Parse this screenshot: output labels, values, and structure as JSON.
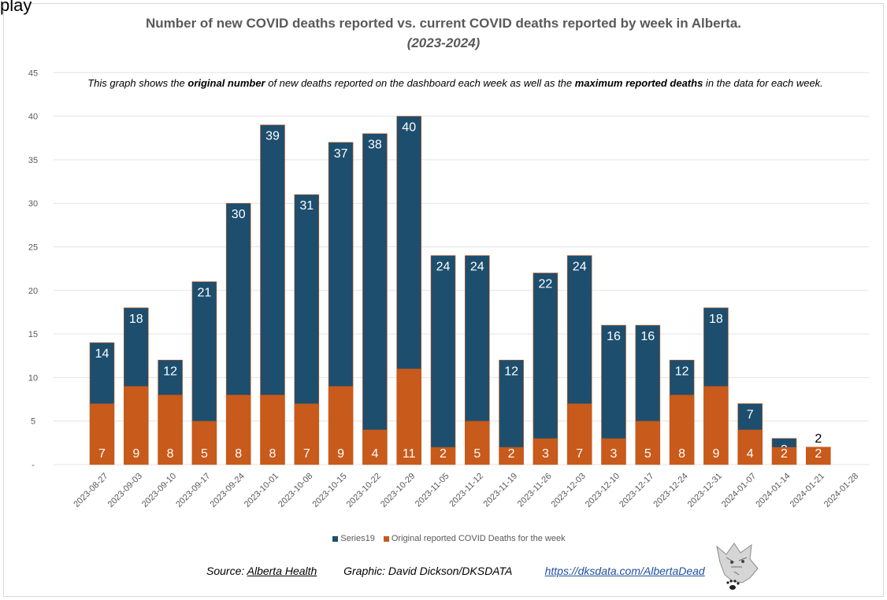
{
  "top_text": "play",
  "title": "Number of new COVID deaths reported vs. current COVID deaths reported by week in Alberta.",
  "subtitle": "(2023-2024)",
  "note": {
    "pre": "This graph shows the ",
    "b1": "original number",
    "mid": " of new deaths reported on the dashboard each week as well as the ",
    "b2": "maximum reported deaths",
    "post": " in the data for each week."
  },
  "legend": {
    "series1": "Series19",
    "series2": "Original reported COVID Deaths for the week"
  },
  "footer": {
    "source_prefix": "Source: ",
    "source": "Alberta Health",
    "graphic": "Graphic: David Dickson/DKSDATA",
    "url": "https://dksdata.com/AlbertaDead"
  },
  "colors": {
    "series1": "#1d4e6e",
    "series2": "#c85a1b",
    "grid": "#e3e3e3",
    "axis_text": "#595959"
  },
  "chart_data": {
    "type": "bar",
    "stacked": false,
    "overlap": true,
    "categories": [
      "2023-08-27",
      "2023-09-03",
      "2023-09-10",
      "2023-09-17",
      "2023-09-24",
      "2023-10-01",
      "2023-10-08",
      "2023-10-15",
      "2023-10-22",
      "2023-10-29",
      "2023-11-05",
      "2023-11-12",
      "2023-11-19",
      "2023-11-26",
      "2023-12-03",
      "2023-12-10",
      "2023-12-17",
      "2023-12-24",
      "2023-12-31",
      "2024-01-07",
      "2024-01-14",
      "2024-01-21",
      "2024-01-28"
    ],
    "series": [
      {
        "name": "Series19",
        "values": [
          14,
          18,
          12,
          21,
          30,
          39,
          31,
          37,
          38,
          40,
          24,
          24,
          12,
          22,
          24,
          16,
          16,
          12,
          18,
          7,
          3,
          2,
          null
        ]
      },
      {
        "name": "Original reported COVID Deaths for the week",
        "values": [
          7,
          9,
          8,
          5,
          8,
          8,
          7,
          9,
          4,
          11,
          2,
          5,
          2,
          3,
          7,
          3,
          5,
          8,
          9,
          4,
          2,
          2,
          null
        ]
      }
    ],
    "ylim": [
      0,
      45
    ],
    "yticks": [
      0,
      5,
      10,
      15,
      20,
      25,
      30,
      35,
      40,
      45
    ],
    "ytick_labels": [
      "-",
      "5",
      "10",
      "15",
      "20",
      "25",
      "30",
      "35",
      "40",
      "45"
    ],
    "grid": true,
    "legend_position": "bottom"
  }
}
